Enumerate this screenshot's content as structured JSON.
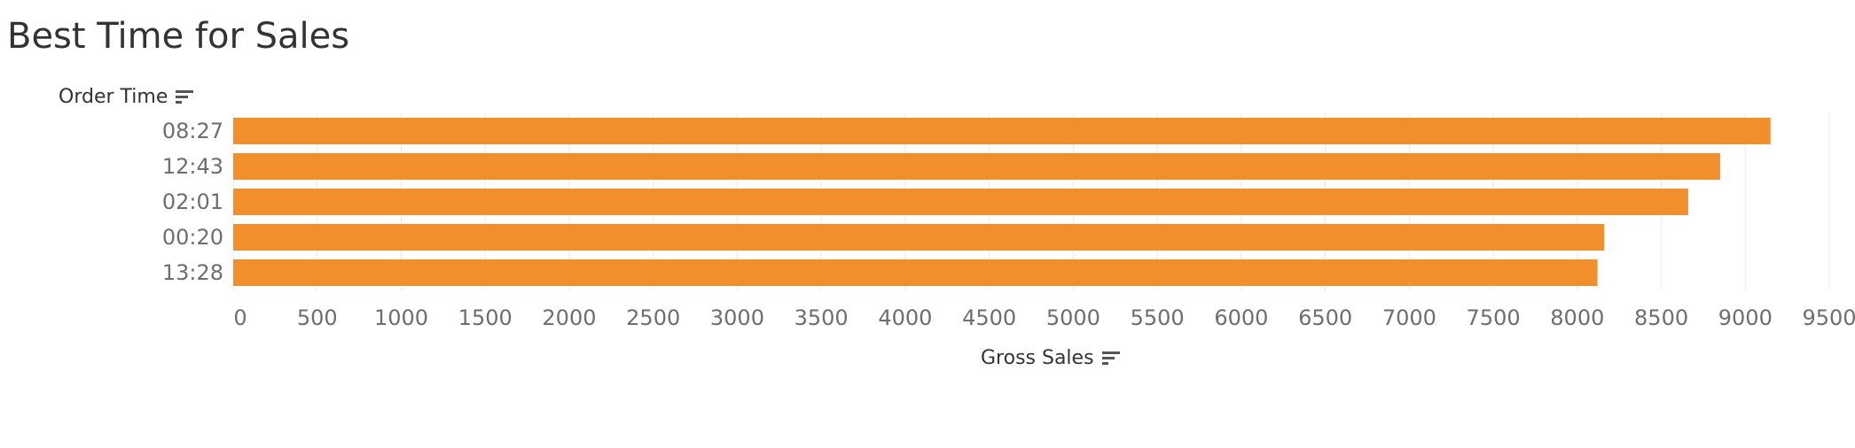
{
  "title": "Best Time for Sales",
  "colors": {
    "bar": "#f28e2b",
    "grid": "#eaeaea",
    "title": "#333333",
    "tick": "#6e6e6e"
  },
  "y_header": {
    "label": "Order Time",
    "icon": "sort-icon"
  },
  "x_header": {
    "label": "Gross Sales",
    "icon": "sort-icon"
  },
  "chart_data": {
    "type": "bar",
    "orientation": "horizontal",
    "categories": [
      "08:27",
      "12:43",
      "02:01",
      "00:20",
      "13:28"
    ],
    "values": [
      9150,
      8850,
      8660,
      8160,
      8120
    ],
    "xlabel": "Gross Sales",
    "ylabel": "Order Time",
    "xlim": [
      0,
      9600
    ],
    "xticks": [
      0,
      500,
      1000,
      1500,
      2000,
      2500,
      3000,
      3500,
      4000,
      4500,
      5000,
      5500,
      6000,
      6500,
      7000,
      7500,
      8000,
      8500,
      9000,
      9500
    ],
    "grid": true,
    "legend": "none"
  }
}
